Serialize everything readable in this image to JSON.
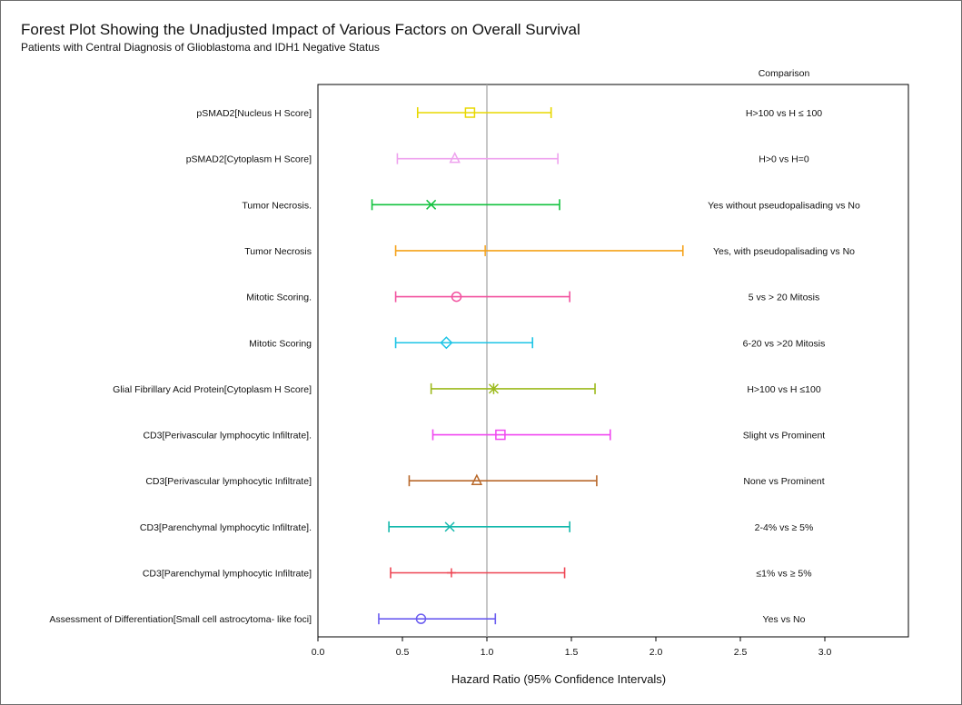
{
  "chart_data": {
    "type": "forest",
    "title": "Forest Plot Showing the Unadjusted Impact of Various Factors on Overall Survival",
    "subtitle": "Patients with Central Diagnosis of Glioblastoma and IDH1 Negative Status",
    "xlabel": "Hazard Ratio (95% Confidence Intervals)",
    "comparison_header": "Comparison",
    "xlim": [
      0.0,
      3.6
    ],
    "xticks": [
      "0.0",
      "0.5",
      "1.0",
      "1.5",
      "2.0",
      "2.5",
      "3.0"
    ],
    "reference_line": 1.0,
    "rows": [
      {
        "label": "pSMAD2[Nucleus H Score]",
        "comparison": "H>100 vs H ≤ 100",
        "hr": 0.9,
        "lo": 0.59,
        "hi": 1.38,
        "color": "#e8d800",
        "marker": "square"
      },
      {
        "label": "pSMAD2[Cytoplasm H Score]",
        "comparison": "H>0 vs H=0",
        "hr": 0.81,
        "lo": 0.47,
        "hi": 1.42,
        "color": "#eea2ee",
        "marker": "triangle"
      },
      {
        "label": "Tumor Necrosis.",
        "comparison": "Yes without pseudopalisading vs No",
        "hr": 0.67,
        "lo": 0.32,
        "hi": 1.43,
        "color": "#12c23e",
        "marker": "x"
      },
      {
        "label": "Tumor Necrosis",
        "comparison": "Yes, with pseudopalisading vs No",
        "hr": 0.99,
        "lo": 0.46,
        "hi": 2.16,
        "color": "#f5a21a",
        "marker": "tick"
      },
      {
        "label": "Mitotic Scoring.",
        "comparison": "5 vs > 20 Mitosis",
        "hr": 0.82,
        "lo": 0.46,
        "hi": 1.49,
        "color": "#f2529f",
        "marker": "circle"
      },
      {
        "label": "Mitotic Scoring",
        "comparison": "6-20 vs >20 Mitosis",
        "hr": 0.76,
        "lo": 0.46,
        "hi": 1.27,
        "color": "#1cc4e6",
        "marker": "diamond"
      },
      {
        "label": "Glial Fibrillary Acid Protein[Cytoplasm H Score]",
        "comparison": "H>100 vs H ≤100",
        "hr": 1.04,
        "lo": 0.67,
        "hi": 1.64,
        "color": "#9cba1c",
        "marker": "star"
      },
      {
        "label": "CD3[Perivascular lymphocytic Infiltrate].",
        "comparison": "Slight vs Prominent",
        "hr": 1.08,
        "lo": 0.68,
        "hi": 1.73,
        "color": "#f048f0",
        "marker": "square"
      },
      {
        "label": "CD3[Perivascular lymphocytic Infiltrate]",
        "comparison": "None vs Prominent",
        "hr": 0.94,
        "lo": 0.54,
        "hi": 1.65,
        "color": "#b8682a",
        "marker": "triangle"
      },
      {
        "label": "CD3[Parenchymal lymphocytic Infiltrate].",
        "comparison": "2-4% vs ≥ 5%",
        "hr": 0.78,
        "lo": 0.42,
        "hi": 1.49,
        "color": "#14b8ac",
        "marker": "x"
      },
      {
        "label": "CD3[Parenchymal lymphocytic Infiltrate]",
        "comparison": "≤1% vs ≥ 5%",
        "hr": 0.79,
        "lo": 0.43,
        "hi": 1.46,
        "color": "#ee4452",
        "marker": "plus"
      },
      {
        "label": "Assessment of Differentiation[Small cell astrocytoma- like foci]",
        "comparison": "Yes vs No",
        "hr": 0.61,
        "lo": 0.36,
        "hi": 1.05,
        "color": "#6a5cf0",
        "marker": "circle"
      }
    ]
  }
}
